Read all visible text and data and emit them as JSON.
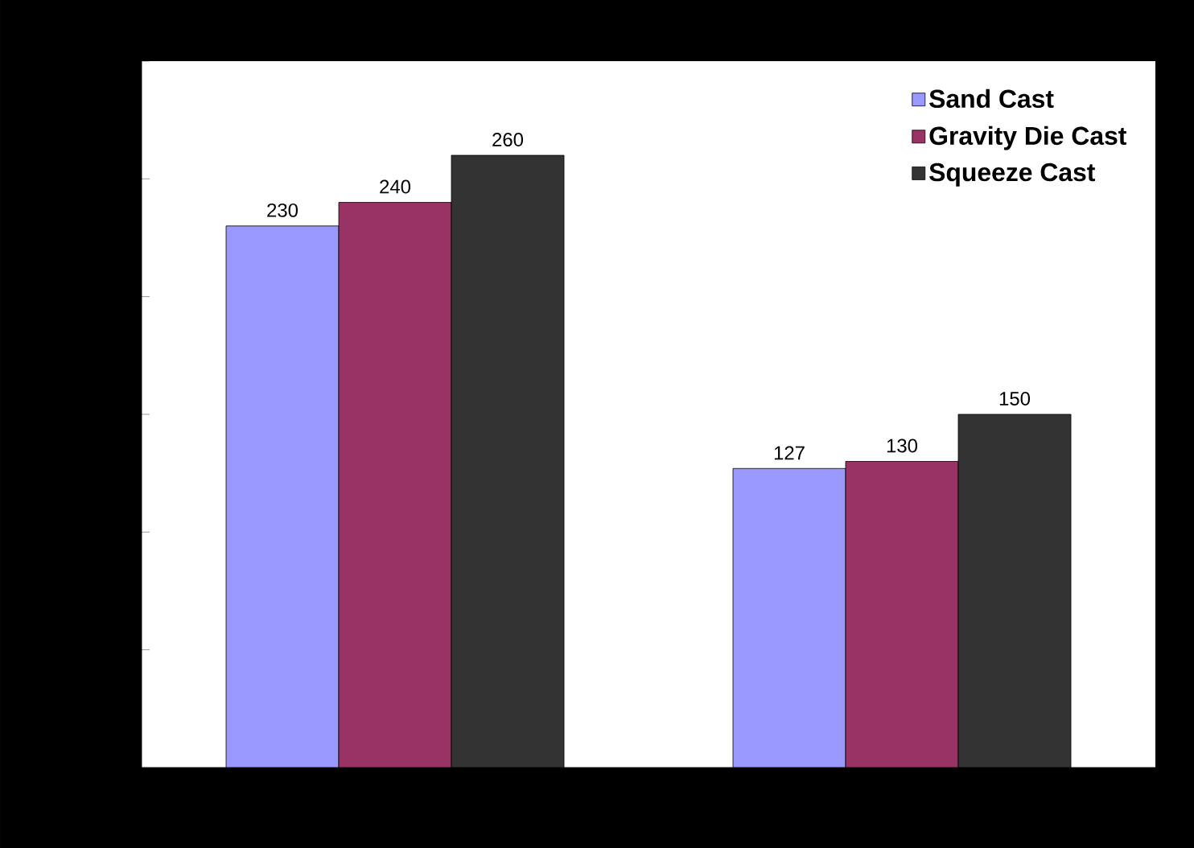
{
  "chart_data": {
    "type": "bar",
    "categories": [
      null,
      null
    ],
    "series": [
      {
        "name": "Sand Cast",
        "color": "#9999ff",
        "values": [
          230,
          127
        ]
      },
      {
        "name": "Gravity Die Cast",
        "color": "#993366",
        "values": [
          240,
          130
        ]
      },
      {
        "name": "Squeeze Cast",
        "color": "#333333",
        "values": [
          260,
          150
        ]
      }
    ],
    "data_labels": true,
    "legend": "top right",
    "ylim": [
      0,
      300
    ],
    "yticks": [
      {
        "value": 50,
        "label": null
      },
      {
        "value": 100,
        "label": null
      },
      {
        "value": 150,
        "label": null
      },
      {
        "value": 200,
        "label": null
      },
      {
        "value": 250,
        "label": null
      },
      {
        "value": 300,
        "label": null
      }
    ]
  }
}
